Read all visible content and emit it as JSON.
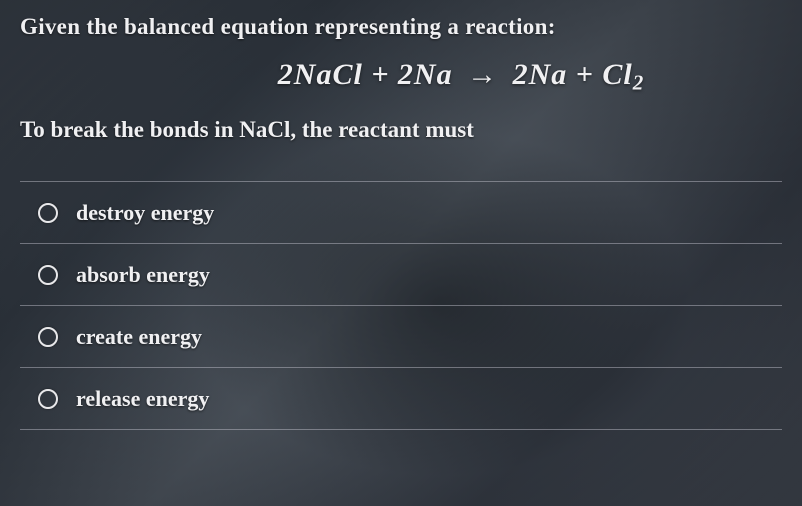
{
  "question": {
    "intro": "Given the balanced equation representing a reaction:",
    "equation_html": "2N<span style='font-style:italic'>a</span>Cl&nbsp;+&nbsp;2N<span style='font-style:italic'>a</span>&nbsp;<span class='arrow'>&rarr;</span>&nbsp;2N<span style='font-style:italic'>a</span>&nbsp;+&nbsp;Cl<sub>2</sub>",
    "stem": "To break the bonds in NaCl, the reactant must"
  },
  "options": [
    {
      "label": "destroy energy"
    },
    {
      "label": "absorb energy"
    },
    {
      "label": "create energy"
    },
    {
      "label": "release energy"
    }
  ],
  "style": {
    "text_color": "#f0f0f2",
    "divider_color": "rgba(200,200,210,0.45)",
    "radio_border": "#e8e8ea",
    "intro_fontsize": 23,
    "equation_fontsize": 30,
    "option_fontsize": 22,
    "option_row_height": 62
  }
}
